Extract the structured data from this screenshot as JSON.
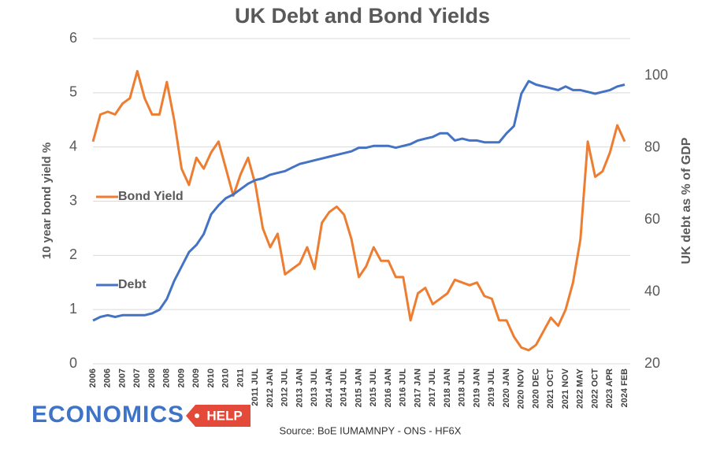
{
  "chart_data": {
    "type": "line",
    "title": "UK Debt and Bond Yields",
    "ylabel": "10 year bond yield %",
    "y2label": "UK debt as % of GDP",
    "source": "Source: BoE IUMAMNPY - ONS - HF6X",
    "logo": {
      "main": "ECONOMICS",
      "badge": "HELP"
    },
    "categories": [
      "2006",
      null,
      "2006",
      null,
      "2007",
      null,
      "2007",
      null,
      "2008",
      null,
      "2008",
      null,
      "2009",
      null,
      "2009",
      null,
      "2010",
      null,
      "2010",
      null,
      "2011",
      null,
      "2011 JUL",
      null,
      "2012 JAN",
      null,
      "2012 JUL",
      null,
      "2013 JAN",
      null,
      "2013 JUL",
      null,
      "2014 JAN",
      null,
      "2014 JUL",
      null,
      "2015 JAN",
      null,
      "2015 JUL",
      null,
      "2016 JAN",
      null,
      "2016 JUL",
      null,
      "2017 JAN",
      null,
      "2017 JUL",
      null,
      "2018 JAN",
      null,
      "2018 JUL",
      null,
      "2019 JAN",
      null,
      "2019 JUL",
      null,
      "2020 JAN",
      null,
      "2020 NOV",
      null,
      "2020 DEC",
      null,
      "2021 OCT",
      null,
      "2021 NOV",
      null,
      "2022 MAY",
      null,
      "2022 OCT",
      null,
      "2023 APR",
      null,
      "2024 FEB"
    ],
    "series": [
      {
        "name": "Bond Yield",
        "color": "#ed7d31",
        "values": [
          4.1,
          4.6,
          4.65,
          4.6,
          4.8,
          4.9,
          5.4,
          4.9,
          4.6,
          4.6,
          5.2,
          4.5,
          3.6,
          3.3,
          3.8,
          3.6,
          3.9,
          4.1,
          3.6,
          3.1,
          3.5,
          3.8,
          3.3,
          2.5,
          2.15,
          2.4,
          1.65,
          1.75,
          1.85,
          2.15,
          1.75,
          2.6,
          2.8,
          2.9,
          2.75,
          2.3,
          1.6,
          1.8,
          2.15,
          1.9,
          1.9,
          1.6,
          1.6,
          0.8,
          1.3,
          1.4,
          1.1,
          1.2,
          1.3,
          1.55,
          1.5,
          1.45,
          1.5,
          1.25,
          1.2,
          0.8,
          0.8,
          0.5,
          0.3,
          0.25,
          0.35,
          0.6,
          0.85,
          0.7,
          1.0,
          1.5,
          2.3,
          4.1,
          3.45,
          3.55,
          3.9,
          4.4,
          4.1
        ]
      },
      {
        "name": "Debt",
        "color": "#4472c4",
        "axis": "y2",
        "values": [
          32,
          33,
          33.5,
          33,
          33.5,
          33.5,
          33.5,
          33.5,
          34,
          35,
          38,
          43,
          47,
          51,
          53,
          56,
          61.5,
          64,
          66,
          67,
          68.5,
          70,
          71,
          71.5,
          72.5,
          73,
          73.5,
          74.5,
          75.5,
          76,
          76.5,
          77,
          77.5,
          78,
          78.5,
          79,
          80,
          80,
          80.5,
          80.5,
          80.5,
          80,
          80.5,
          81,
          82,
          82.5,
          83,
          84,
          84,
          82,
          82.5,
          82,
          82,
          81.5,
          81.5,
          81.5,
          84,
          86,
          95,
          98.5,
          97.5,
          97,
          96.5,
          96,
          97,
          96,
          96,
          95.5,
          95,
          95.5,
          96,
          97,
          97.5
        ]
      }
    ],
    "ylim": [
      0,
      6
    ],
    "yticks": [
      0,
      1,
      2,
      3,
      4,
      5,
      6
    ],
    "y2lim": [
      20,
      110.3
    ],
    "y2ticks": [
      20,
      40,
      60,
      80,
      100
    ],
    "grid": true
  }
}
